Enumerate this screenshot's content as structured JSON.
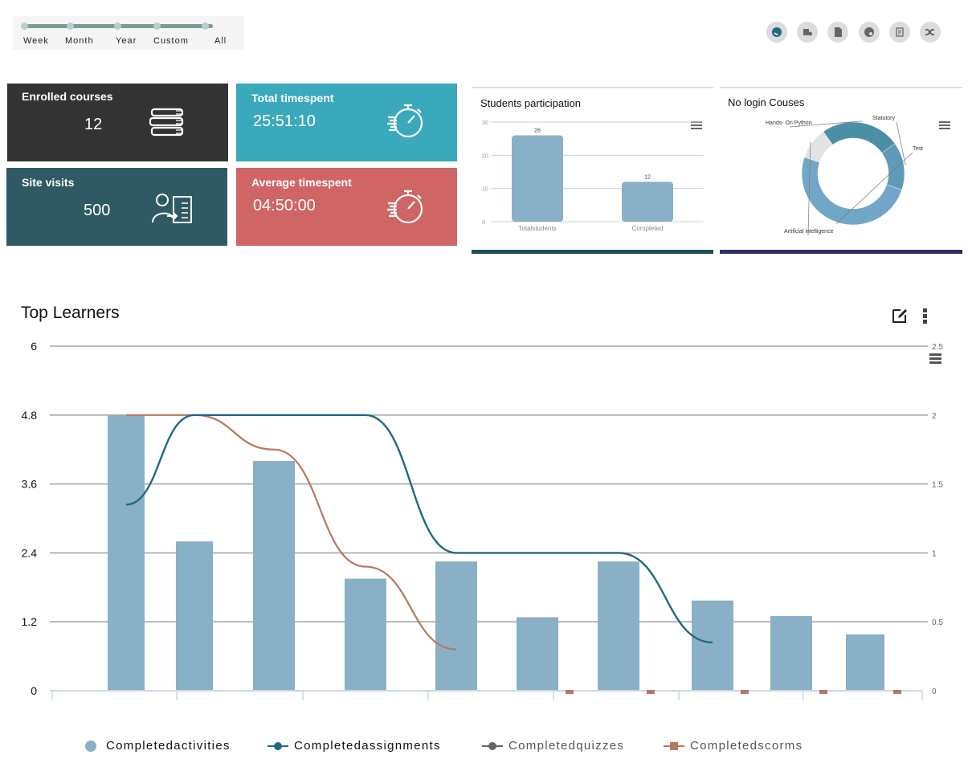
{
  "period_selector": {
    "options": [
      "Week",
      "Month",
      "Year",
      "Custom",
      "All"
    ]
  },
  "toolbar": {
    "icons": [
      "dashboard-icon",
      "user-settings-icon",
      "report-icon",
      "speed-icon",
      "notes-icon",
      "shuffle-icon"
    ]
  },
  "cards": {
    "enrolled": {
      "title": "Enrolled courses",
      "value": "12",
      "color": "#333333",
      "icon": "books-icon"
    },
    "timespent": {
      "title": "Total timespent",
      "value": "25:51:10",
      "color": "#3aa9bc",
      "icon": "stopwatch-icon"
    },
    "visits": {
      "title": "Site visits",
      "value": "500",
      "color": "#305a63",
      "icon": "user-list-icon"
    },
    "average": {
      "title": "Average timespent",
      "value": "04:50:00",
      "color": "#cf6565",
      "icon": "stopwatch-icon"
    }
  },
  "participation": {
    "title": "Students participation",
    "chart_data": {
      "type": "bar",
      "categories": [
        "Totalstudents",
        "Completed"
      ],
      "values": [
        26,
        12
      ],
      "data_labels": [
        "26",
        "12"
      ],
      "ylim": [
        0,
        30
      ],
      "y_ticks": [
        "0",
        "10",
        "20",
        "30"
      ],
      "bar_color": "#89b0c6"
    }
  },
  "no_login": {
    "title": "No login Couses",
    "chart_data": {
      "type": "pie",
      "labels": [
        "Hands- On Python",
        "Statutory",
        "Test",
        "Artificial intelligence"
      ],
      "values": [
        25,
        15,
        50,
        10
      ],
      "colors": [
        "#4b8fa7",
        "#5f9ab8",
        "#72a6c8",
        "#e3e3e3"
      ]
    }
  },
  "top_learners": {
    "title": "Top Learners",
    "chart_data": {
      "type": "bar",
      "y_left_ticks": [
        "0",
        "1.2",
        "2.4",
        "3.6",
        "4.8",
        "6"
      ],
      "y_right_ticks": [
        "0",
        "0.5",
        "1",
        "1.5",
        "2",
        "2.5"
      ],
      "ylim_left": [
        0,
        6
      ],
      "ylim_right": [
        0,
        2.5
      ],
      "series": [
        {
          "name": "Completedactivities",
          "kind": "bar",
          "color": "#89b0c6",
          "values": [
            4.8,
            2.6,
            4.0,
            1.95,
            2.25,
            1.28,
            2.25,
            1.57,
            1.3,
            0.98
          ]
        },
        {
          "name": "Completedassignments",
          "kind": "line",
          "color": "#1f6a82",
          "values": [
            1.35,
            2.0,
            2.0,
            2.0,
            1.0,
            1.0,
            1.0,
            0.35,
            null,
            null
          ]
        },
        {
          "name": "Completedquizzes",
          "kind": "line",
          "color": "#666666",
          "values": [
            null,
            null,
            null,
            null,
            null,
            null,
            null,
            null,
            null,
            null
          ]
        },
        {
          "name": "Completedscorms",
          "kind": "line",
          "color": "#b8775e",
          "values": [
            2.0,
            2.0,
            1.75,
            0.9,
            0.3,
            0,
            0,
            0,
            0,
            0
          ]
        }
      ]
    }
  }
}
